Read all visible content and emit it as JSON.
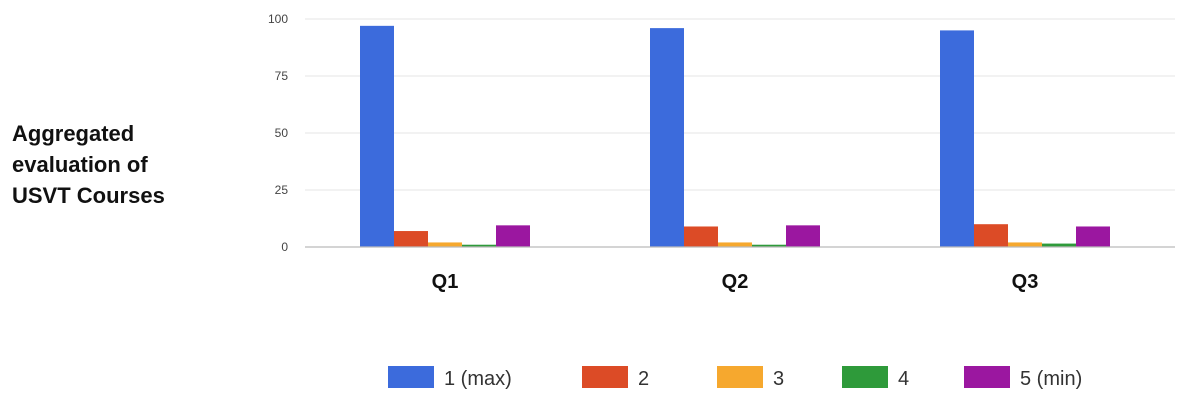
{
  "side_title": {
    "line1": "Aggregated",
    "line2": "evaluation of",
    "line3": "USVT Courses"
  },
  "chart_data": {
    "type": "bar",
    "title": "",
    "xlabel": "",
    "ylabel": "",
    "categories": [
      "Q1",
      "Q2",
      "Q3"
    ],
    "ylim": [
      0,
      100
    ],
    "yticks": [
      0,
      25,
      50,
      75,
      100
    ],
    "grid": true,
    "legend_position": "bottom",
    "series": [
      {
        "name": "1 (max)",
        "color": "#3c6bdc",
        "values": [
          97,
          96,
          95
        ]
      },
      {
        "name": "2",
        "color": "#dc4b26",
        "values": [
          7,
          9,
          10
        ]
      },
      {
        "name": "3",
        "color": "#f6a82e",
        "values": [
          2,
          2,
          2
        ]
      },
      {
        "name": "4",
        "color": "#2e9a3a",
        "values": [
          1,
          1,
          1.5
        ]
      },
      {
        "name": "5 (min)",
        "color": "#9b17a0",
        "values": [
          9.5,
          9.5,
          9
        ]
      }
    ]
  }
}
